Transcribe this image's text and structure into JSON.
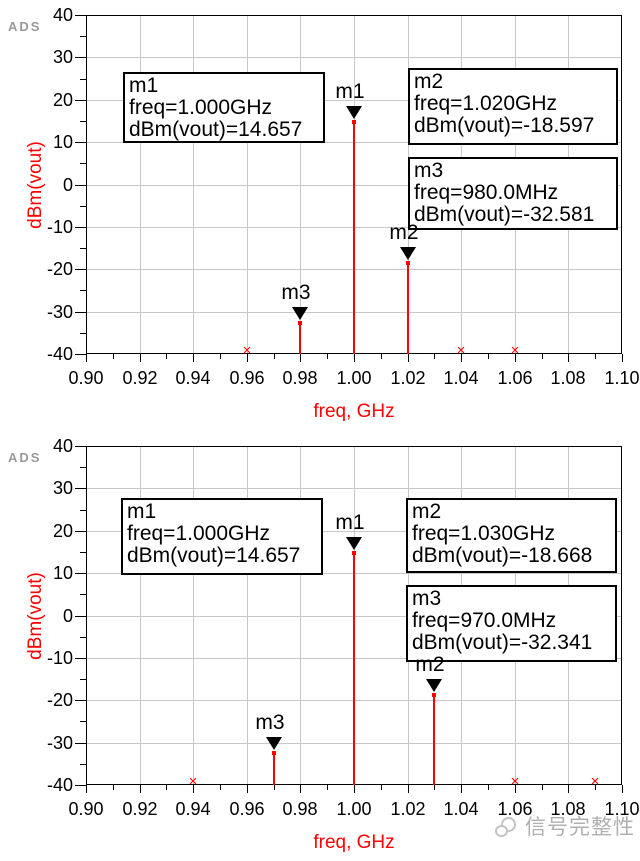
{
  "watermark": {
    "text": "信号完整性"
  },
  "colors": {
    "trace": "#ff0000",
    "grid": "#c8c8c8",
    "axis_text": "#000000",
    "axis_title": "#ff0000",
    "logo": "#9a9a9a",
    "watermark": "#b0b0b0"
  },
  "chart_data": [
    {
      "type": "bar",
      "subtype": "stem-spectrum",
      "logo": "ADS",
      "xlabel": "freq, GHz",
      "ylabel": "dBm(vout)",
      "xlim": [
        0.9,
        1.1
      ],
      "ylim": [
        -40,
        40
      ],
      "grid": true,
      "x_tick_labels": [
        "0.90",
        "0.92",
        "0.94",
        "0.96",
        "0.98",
        "1.00",
        "1.02",
        "1.04",
        "1.06",
        "1.08",
        "1.10"
      ],
      "y_tick_labels": [
        "40",
        "30",
        "20",
        "10",
        "0",
        "-10",
        "-20",
        "-30",
        "-40"
      ],
      "stems": [
        {
          "marker": "m3",
          "freq_ghz": 0.98,
          "dbm": -32.581
        },
        {
          "marker": "m1",
          "freq_ghz": 1.0,
          "dbm": 14.657
        },
        {
          "marker": "m2",
          "freq_ghz": 1.02,
          "dbm": -18.597
        }
      ],
      "clipped_stems_ghz": [
        0.96,
        1.04,
        1.06
      ],
      "marker_boxes": [
        {
          "id": "m1",
          "lines": [
            "m1",
            "freq=1.000GHz",
            "dBm(vout)=14.657"
          ]
        },
        {
          "id": "m2",
          "lines": [
            "m2",
            "freq=1.020GHz",
            "dBm(vout)=-18.597"
          ]
        },
        {
          "id": "m3",
          "lines": [
            "m3",
            "freq=980.0MHz",
            "dBm(vout)=-32.581"
          ]
        }
      ]
    },
    {
      "type": "bar",
      "subtype": "stem-spectrum",
      "logo": "ADS",
      "xlabel": "freq, GHz",
      "ylabel": "dBm(vout)",
      "xlim": [
        0.9,
        1.1
      ],
      "ylim": [
        -40,
        40
      ],
      "grid": true,
      "x_tick_labels": [
        "0.90",
        "0.92",
        "0.94",
        "0.96",
        "0.98",
        "1.00",
        "1.02",
        "1.04",
        "1.06",
        "1.08",
        "1.10"
      ],
      "y_tick_labels": [
        "40",
        "30",
        "20",
        "10",
        "0",
        "-10",
        "-20",
        "-30",
        "-40"
      ],
      "stems": [
        {
          "marker": "m3",
          "freq_ghz": 0.97,
          "dbm": -32.341
        },
        {
          "marker": "m1",
          "freq_ghz": 1.0,
          "dbm": 14.657
        },
        {
          "marker": "m2",
          "freq_ghz": 1.03,
          "dbm": -18.668
        }
      ],
      "clipped_stems_ghz": [
        0.94,
        1.06,
        1.09
      ],
      "marker_boxes": [
        {
          "id": "m1",
          "lines": [
            "m1",
            "freq=1.000GHz",
            "dBm(vout)=14.657"
          ]
        },
        {
          "id": "m2",
          "lines": [
            "m2",
            "freq=1.030GHz",
            "dBm(vout)=-18.668"
          ]
        },
        {
          "id": "m3",
          "lines": [
            "m3",
            "freq=970.0MHz",
            "dBm(vout)=-32.341"
          ]
        }
      ]
    }
  ]
}
